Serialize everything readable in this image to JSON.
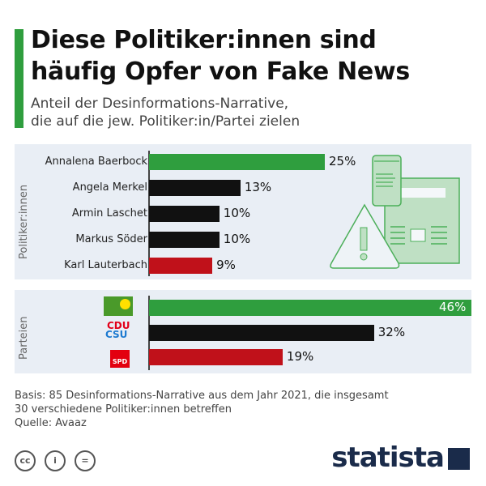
{
  "title": "Diese Politiker:innen sind häufig Opfer von Fake News",
  "title_lines": [
    "Diese Politiker:innen sind",
    "häufig Opfer von Fake News"
  ],
  "subtitle_lines": [
    "Anteil der Desinformations-Narrative,",
    "die auf die jew. Politiker:in/Partei zielen"
  ],
  "chart_data": [
    {
      "type": "bar",
      "orientation": "horizontal",
      "group_label": "Politiker:innen",
      "categories": [
        "Annalena Baerbock",
        "Angela Merkel",
        "Armin Laschet",
        "Markus Söder",
        "Karl Lauterbach"
      ],
      "values": [
        25,
        13,
        10,
        10,
        9
      ],
      "labels": [
        "25%",
        "13%",
        "10%",
        "10%",
        "9%"
      ],
      "colors": [
        "#2f9e3e",
        "#111111",
        "#111111",
        "#111111",
        "#c0111a"
      ],
      "unit": "%"
    },
    {
      "type": "bar",
      "orientation": "horizontal",
      "group_label": "Parteien",
      "categories": [
        "Bündnis 90/Die Grünen",
        "CDU/CSU",
        "SPD"
      ],
      "logo_texts": [
        "BÜNDNIS 90 DIE GRÜNEN",
        "CDU",
        "CSU",
        "SPD"
      ],
      "values": [
        46,
        32,
        19
      ],
      "labels": [
        "46%",
        "32%",
        "19%"
      ],
      "colors": [
        "#2f9e3e",
        "#111111",
        "#c0111a"
      ],
      "unit": "%"
    }
  ],
  "footer": {
    "basis_lines": [
      "Basis: 85 Desinformations-Narrative aus dem Jahr 2021, die insgesamt",
      "30 verschiedene Politiker:innen betreffen"
    ],
    "source": "Quelle: Avaaz"
  },
  "license_icons": [
    "cc-icon",
    "by-icon",
    "nd-icon"
  ],
  "brand": "statista"
}
